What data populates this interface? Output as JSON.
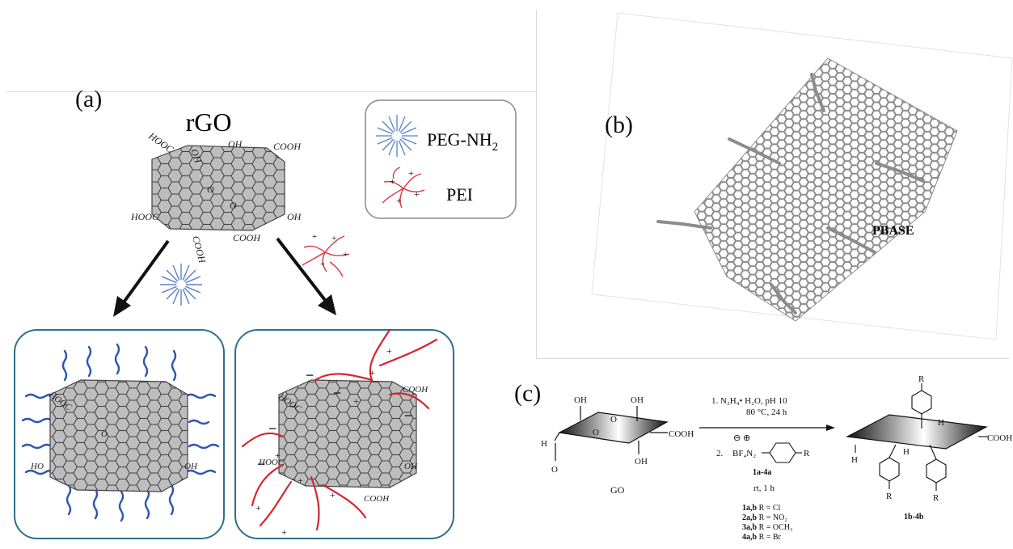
{
  "panel_a": {
    "label": "(a)",
    "title": "rGO",
    "legend": [
      {
        "name": "PEG-NH",
        "sub": "2",
        "color": "#5b7fc4"
      },
      {
        "name": "PEI",
        "color": "#d9363e"
      }
    ],
    "groups": {
      "cooh": "COOH",
      "hooc": "HOOC",
      "oh": "OH",
      "ho": "HO",
      "o": "O"
    },
    "charge_plus": "+",
    "charge_minus": "−",
    "colors": {
      "sheet": "#bdbdbd",
      "peg": "#2f56b0",
      "pei": "#d5262e",
      "box_border": "#2e6f8a"
    }
  },
  "panel_b": {
    "label": "(b)",
    "molecule": "PBASE",
    "colors": {
      "graphene": "#8c8c8c",
      "pyrene": "#e5e020",
      "oxygen": "#d42b2b",
      "nitrogen": "#2f4fc4"
    }
  },
  "panel_c": {
    "label": "(c)",
    "reactant": "GO",
    "step1": "1.  N₂H₄• H₂O, pH 10",
    "step1_cond": "80 °C, 24 h",
    "charges": "⊖  ⊕",
    "step2_num": "2.",
    "step2_reagent": "BF₄N₂",
    "reagent_id": "1a-4a",
    "step2_cond": "rt, 1 h",
    "substituents": [
      {
        "id": "1a,b",
        "text": "R = Cl"
      },
      {
        "id": "2a,b",
        "text": "R = NO₂"
      },
      {
        "id": "3a,b",
        "text": "R = OCH₃"
      },
      {
        "id": "4a,b",
        "text": "R = Br"
      }
    ],
    "product": "1b-4b",
    "sheet_groups": {
      "oh": "OH",
      "cooh": "COOH",
      "h": "H",
      "o": "O",
      "r": "R"
    }
  }
}
